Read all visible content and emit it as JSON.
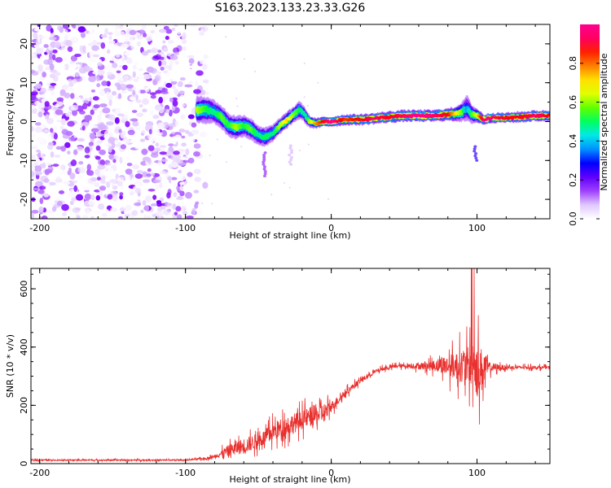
{
  "figure": {
    "title": "S163.2023.133.23.33.G26"
  },
  "chart_data": [
    {
      "type": "heatmap",
      "title": "S163.2023.133.23.33.G26",
      "xlabel": "Height of straight line (km)",
      "ylabel": "Frequency (Hz)",
      "xlim": [
        -206,
        150
      ],
      "ylim": [
        -25,
        25
      ],
      "x_ticks": [
        -200,
        -100,
        0,
        100
      ],
      "y_ticks": [
        -20,
        -10,
        0,
        10,
        20
      ],
      "colorbar": {
        "label": "Normalized spectral amplitude",
        "range": [
          0,
          1
        ],
        "ticks": [
          "0.0",
          "0.2",
          "0.4",
          "0.6",
          "0.8"
        ],
        "colormap": [
          "#ffffff",
          "#d6b4ff",
          "#8000ff",
          "#3000ff",
          "#0080ff",
          "#00e0e0",
          "#00ff40",
          "#a0ff00",
          "#ffff00",
          "#ff8000",
          "#ff0000",
          "#ff0080",
          "#ff00b0"
        ]
      },
      "noise_region_km": [
        -206,
        -85
      ],
      "ridge": {
        "x": [
          -92,
          -85,
          -80,
          -75,
          -70,
          -65,
          -60,
          -55,
          -50,
          -45,
          -40,
          -35,
          -30,
          -25,
          -22,
          -20,
          -17,
          -15,
          -10,
          -5,
          0,
          10,
          20,
          30,
          40,
          50,
          60,
          70,
          80,
          85,
          90,
          93,
          96,
          100,
          105,
          110,
          120,
          130,
          140,
          150
        ],
        "y": [
          3,
          3,
          2.5,
          1,
          -1,
          -1.5,
          -1,
          -2,
          -3.5,
          -4,
          -3,
          -1,
          0.5,
          2,
          3,
          2.5,
          1,
          0,
          -0.5,
          0,
          0,
          0.5,
          0.5,
          0.8,
          1.2,
          1.5,
          1.5,
          1.5,
          1.8,
          2,
          2.5,
          3.5,
          2,
          1.5,
          0.5,
          1,
          1,
          1.2,
          1.5,
          1.5
        ],
        "amp": [
          0.6,
          0.5,
          0.45,
          0.55,
          0.5,
          0.6,
          0.5,
          0.55,
          0.45,
          0.5,
          0.45,
          0.6,
          0.7,
          0.55,
          0.5,
          0.45,
          0.45,
          0.6,
          0.75,
          0.85,
          0.95,
          0.8,
          0.85,
          0.9,
          0.85,
          0.9,
          0.95,
          0.9,
          0.85,
          0.7,
          0.55,
          0.35,
          0.5,
          0.65,
          0.95,
          0.9,
          0.85,
          0.85,
          0.9,
          0.85
        ],
        "width": [
          3.5,
          3.5,
          3,
          3,
          3,
          3,
          2.8,
          2.8,
          2.5,
          2.5,
          2.2,
          2,
          2,
          2,
          2.5,
          2,
          1.8,
          1.5,
          1.2,
          1.2,
          1.2,
          1.3,
          1.3,
          1.3,
          1.4,
          1.4,
          1.4,
          1.4,
          1.5,
          1.8,
          2.5,
          3.5,
          2.5,
          1.8,
          1.2,
          1.2,
          1.2,
          1.3,
          1.3,
          1.3
        ]
      }
    },
    {
      "type": "line",
      "xlabel": "Height of straight line (km)",
      "ylabel": "SNR (10 * v/v)",
      "xlim": [
        -206,
        150
      ],
      "ylim": [
        0,
        670
      ],
      "x_ticks": [
        -200,
        -100,
        0,
        100
      ],
      "y_ticks": [
        0,
        200,
        400,
        600
      ],
      "color": "#e8302e",
      "baseline": {
        "x": [
          -206,
          -100,
          -85,
          -80,
          -75,
          -70,
          -65,
          -60,
          -55,
          -50,
          -45,
          -40,
          -35,
          -30,
          -25,
          -20,
          -15,
          -10,
          -5,
          0,
          5,
          10,
          15,
          20,
          25,
          30,
          35,
          40,
          45,
          50,
          55,
          60,
          65,
          70,
          75,
          80,
          85,
          90,
          95,
          100,
          103,
          106,
          110,
          120,
          130,
          140,
          150
        ],
        "y": [
          12,
          12,
          18,
          25,
          35,
          45,
          55,
          60,
          70,
          80,
          90,
          110,
          120,
          130,
          140,
          150,
          160,
          165,
          175,
          195,
          220,
          245,
          265,
          285,
          300,
          315,
          325,
          330,
          335,
          335,
          335,
          335,
          335,
          335,
          340,
          335,
          335,
          335,
          335,
          330,
          320,
          330,
          330,
          330,
          330,
          330,
          330
        ]
      },
      "noise_amplitude": {
        "x": [
          -206,
          -100,
          -90,
          -80,
          -70,
          -60,
          -50,
          -40,
          -30,
          -20,
          -10,
          -5,
          0,
          10,
          20,
          30,
          40,
          50,
          60,
          70,
          80,
          88,
          95,
          100,
          104,
          108,
          120,
          150
        ],
        "y": [
          5,
          5,
          8,
          12,
          45,
          60,
          55,
          70,
          80,
          70,
          80,
          75,
          40,
          25,
          20,
          15,
          15,
          15,
          25,
          40,
          80,
          120,
          150,
          220,
          160,
          40,
          15,
          12
        ]
      },
      "peak_max": 670
    }
  ]
}
